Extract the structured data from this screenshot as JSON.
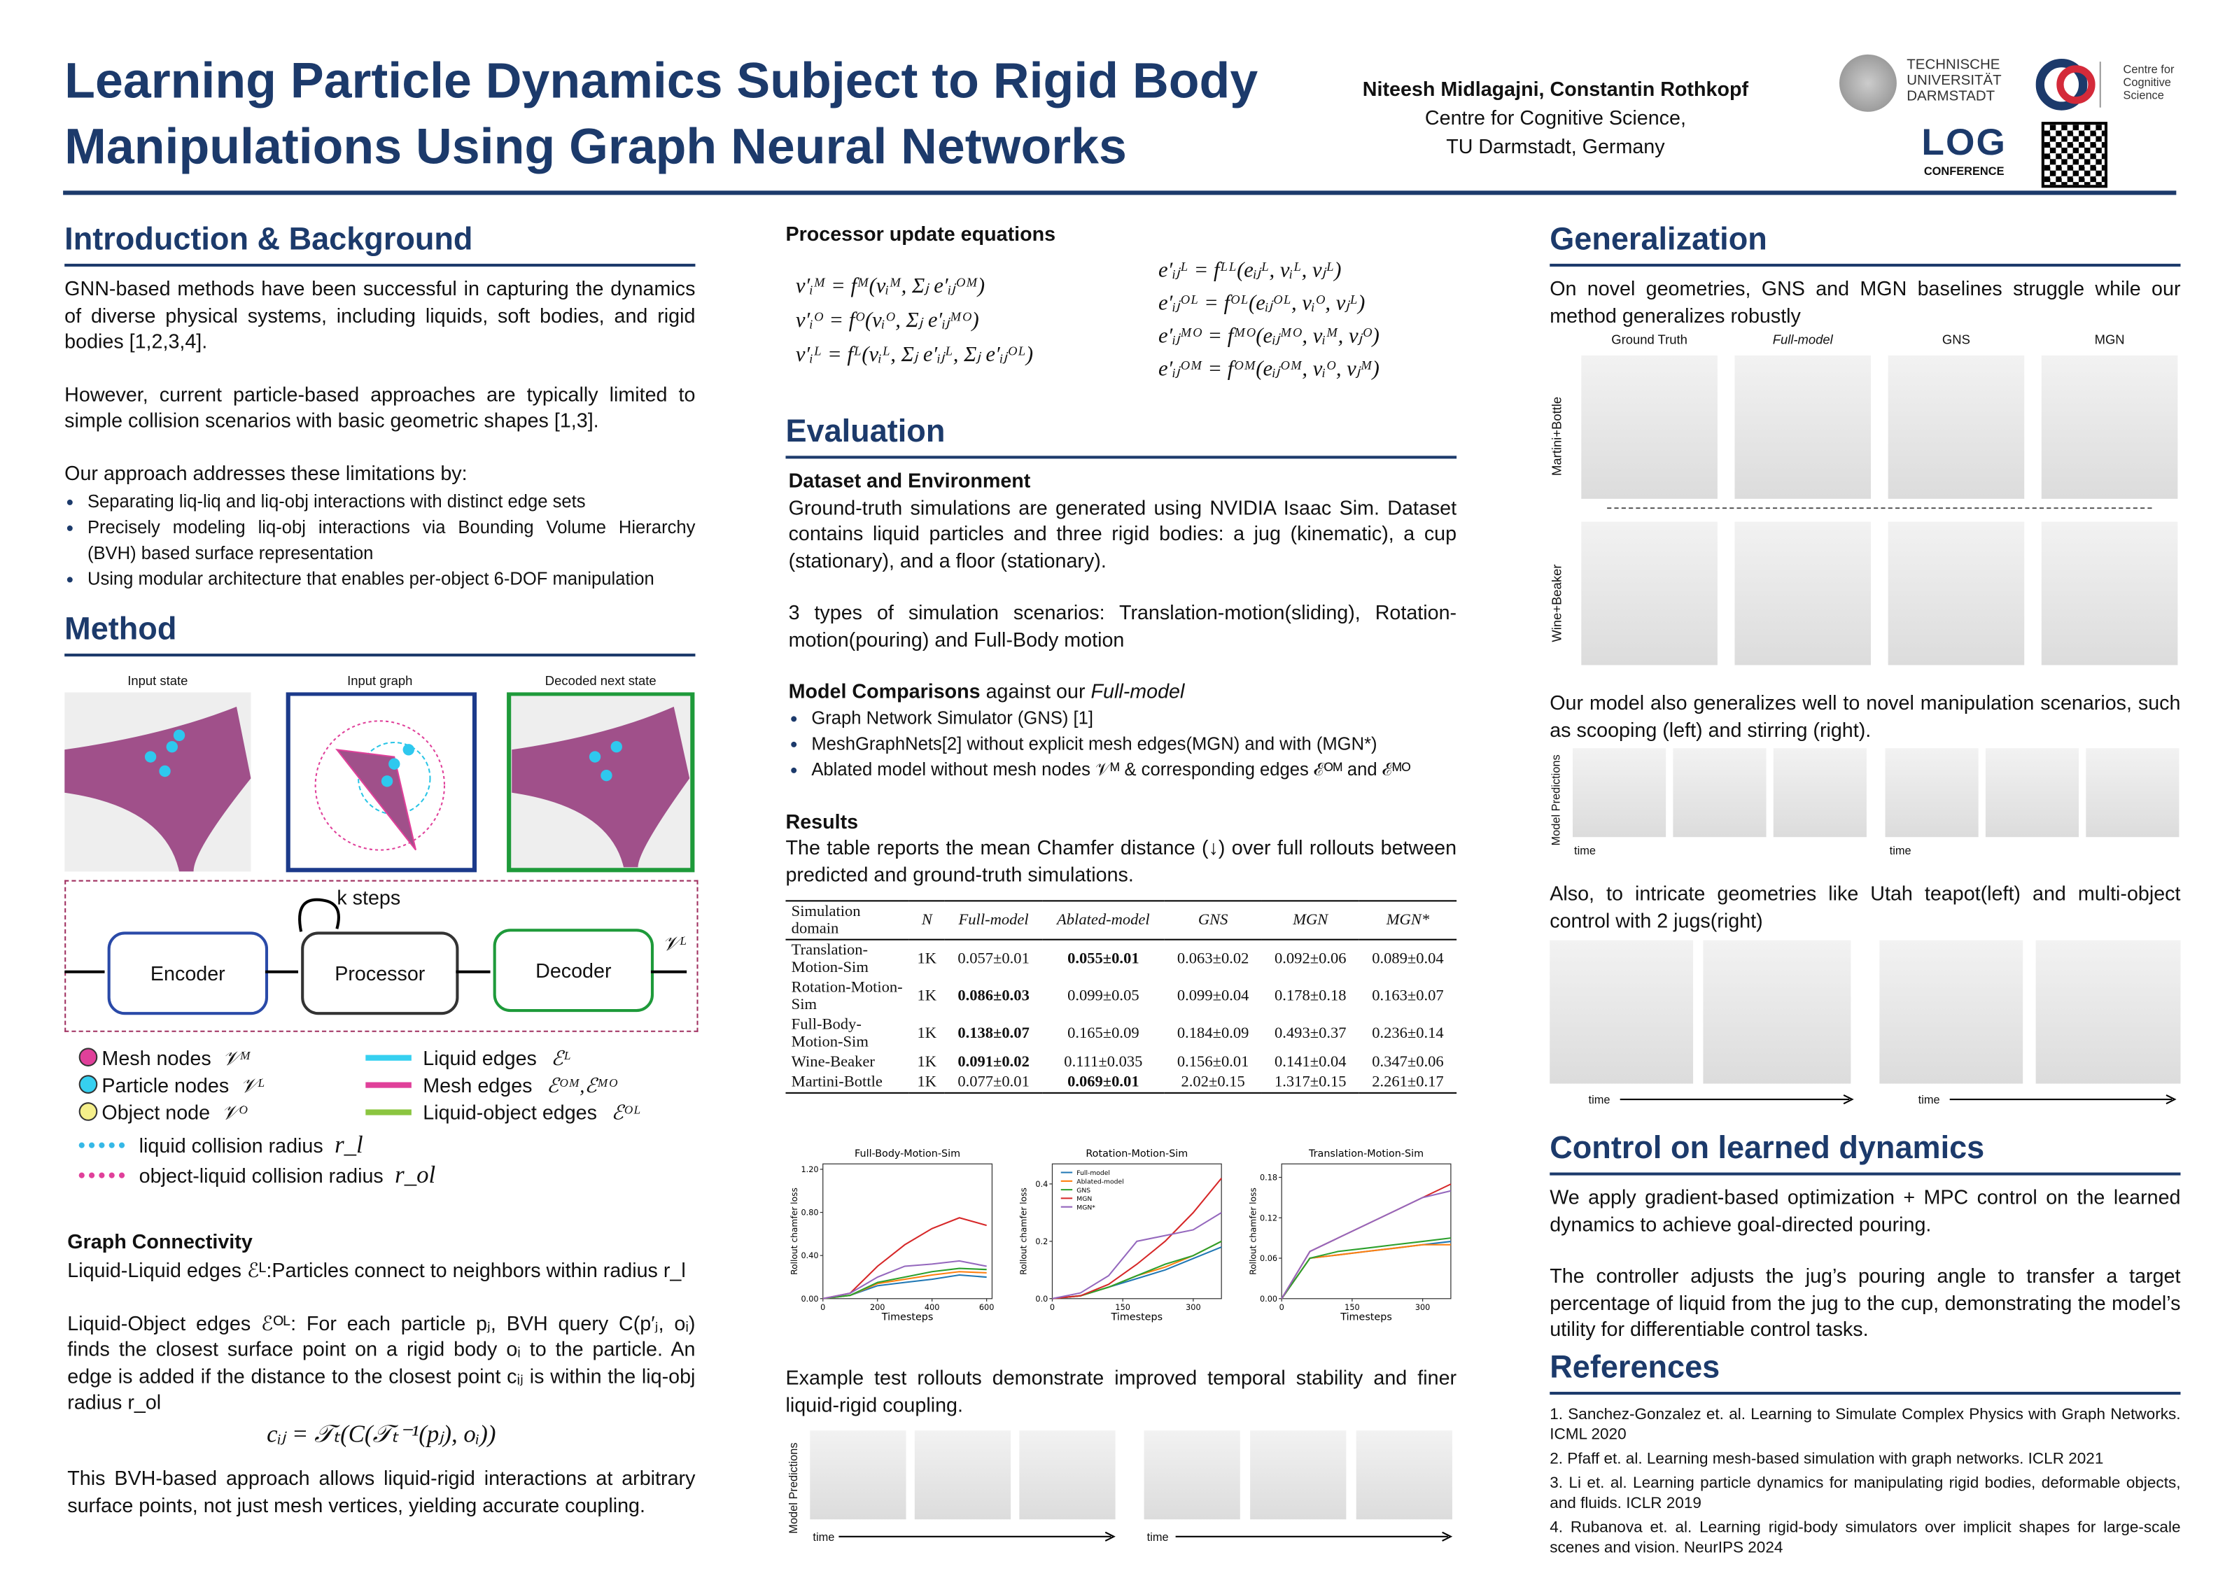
{
  "header": {
    "title_lines": [
      "Learning Particle Dynamics Subject to Rigid Body",
      "Manipulations Using Graph Neural Networks"
    ],
    "authors": "Niteesh Midlagajni, Constantin Rothkopf",
    "affiliation": [
      "Centre for Cognitive Science,",
      "TU Darmstadt, Germany"
    ],
    "tu_logo": [
      "TECHNISCHE",
      "UNIVERSITÄT",
      "DARMSTADT"
    ],
    "ccs_logo": [
      "Centre for",
      "Cognitive",
      "Science"
    ],
    "log_logo": "LOG",
    "log_sub": "CONFERENCE"
  },
  "intro": {
    "heading": "Introduction & Background",
    "paragraphs": [
      "GNN-based methods have been successful in capturing the dynamics of diverse physical systems, including liquids, soft bodies, and rigid bodies [1,2,3,4].",
      "However, current particle-based approaches are typically limited to simple collision scenarios with basic geometric shapes [1,3].",
      "Our approach addresses these limitations by:"
    ],
    "bullets": [
      "Separating liq-liq and liq-obj interactions with distinct edge sets",
      "Precisely modeling liq-obj interactions via Bounding Volume Hierarchy (BVH) based surface representation",
      "Using modular architecture that enables per-object 6-DOF manipulation"
    ]
  },
  "method": {
    "heading": "Method",
    "panels": [
      "Input state",
      "Input graph",
      "Decoded next state"
    ],
    "k_steps": "k steps",
    "blocks": [
      "Encoder",
      "Processor",
      "Decoder"
    ],
    "output": "𝒱ᴸ",
    "legend_left": [
      {
        "label": "Mesh nodes",
        "symbol": "𝒱ᴹ"
      },
      {
        "label": "Particle nodes",
        "symbol": "𝒱ᴸ"
      },
      {
        "label": "Object node",
        "symbol": "𝒱ᴼ"
      }
    ],
    "legend_right": [
      {
        "label": "Liquid edges",
        "symbol": "ℰᴸ"
      },
      {
        "label": "Mesh edges",
        "symbol": "ℰᴼᴹ,ℰᴹᴼ"
      },
      {
        "label": "Liquid-object edges",
        "symbol": "ℰᴼᴸ"
      }
    ],
    "radii": [
      {
        "label": "liquid collision radius",
        "symbol": "r_l"
      },
      {
        "label": "object-liquid collision radius",
        "symbol": "r_ol"
      }
    ],
    "connectivity_heading": "Graph Connectivity",
    "connectivity": [
      "Liquid-Liquid edges ℰᴸ:Particles connect to neighbors within radius r_l",
      "Liquid-Object edges ℰᴼᴸ: For each particle pⱼ, BVH query C(p′ⱼ, oᵢ) finds the closest surface point on a rigid body oᵢ to the particle. An edge is added if the distance to the closest point cᵢⱼ is within the liq-obj radius r_ol"
    ],
    "equation": "cᵢⱼ = 𝒯ₜ(C(𝒯ₜ⁻¹(pⱼ), oᵢ))",
    "closing": "This BVH-based approach allows liquid-rigid interactions at arbitrary surface points, not just mesh vertices, yielding accurate coupling."
  },
  "processor": {
    "heading": "Processor update equations",
    "left": [
      "v′ᵢᴹ = fᴹ(vᵢᴹ, Σⱼ e′ᵢⱼᴼᴹ)",
      "v′ᵢᴼ = fᴼ(vᵢᴼ, Σⱼ e′ᵢⱼᴹᴼ)",
      "v′ᵢᴸ = fᴸ(vᵢᴸ, Σⱼ e′ᵢⱼᴸ, Σⱼ e′ᵢⱼᴼᴸ)"
    ],
    "right": [
      "e′ᵢⱼᴸ = fᴸᴸ(eᵢⱼᴸ, vᵢᴸ, vⱼᴸ)",
      "e′ᵢⱼᴼᴸ = fᴼᴸ(eᵢⱼᴼᴸ, vᵢᴼ, vⱼᴸ)",
      "e′ᵢⱼᴹᴼ = fᴹᴼ(eᵢⱼᴹᴼ, vᵢᴹ, vⱼᴼ)",
      "e′ᵢⱼᴼᴹ = fᴼᴹ(eᵢⱼᴼᴹ, vᵢᴼ, vⱼᴹ)"
    ]
  },
  "evaluation": {
    "heading": "Evaluation",
    "dataset_heading": "Dataset and Environment",
    "dataset": [
      "Ground-truth simulations are generated using NVIDIA Isaac Sim. Dataset contains liquid particles and three rigid bodies: a jug (kinematic), a cup (stationary), and a floor (stationary).",
      "3 types of simulation scenarios: Translation-motion(sliding), Rotation-motion(pouring) and Full-Body motion"
    ],
    "comparisons_heading": "Model Comparisons",
    "comparisons_rest": "against our",
    "comparisons_model": "Full-model",
    "comparisons": [
      "Graph Network Simulator (GNS) [1]",
      "MeshGraphNets[2] without explicit mesh edges(MGN) and with (MGN*)",
      "Ablated model without mesh nodes 𝒱ᴹ & corresponding edges ℰᴼᴹ and ℰᴹᴼ"
    ],
    "results_heading": "Results",
    "results": "The table reports the mean Chamfer distance (↓) over full rollouts between predicted and ground-truth simulations.",
    "table": {
      "header": [
        "Simulation domain",
        "N",
        "Full-model",
        "Ablated-model",
        "GNS",
        "MGN",
        "MGN*"
      ],
      "rows": [
        [
          "Translation-Motion-Sim",
          "1K",
          "0.057±0.01",
          "0.055±0.01",
          "0.063±0.02",
          "0.092±0.06",
          "0.089±0.04"
        ],
        [
          "Rotation-Motion-Sim",
          "1K",
          "0.086±0.03",
          "0.099±0.05",
          "0.099±0.04",
          "0.178±0.18",
          "0.163±0.07"
        ],
        [
          "Full-Body-Motion-Sim",
          "1K",
          "0.138±0.07",
          "0.165±0.09",
          "0.184±0.09",
          "0.493±0.37",
          "0.236±0.14"
        ],
        [
          "Wine-Beaker",
          "1K",
          "0.091±0.02",
          "0.111±0.035",
          "0.156±0.01",
          "0.141±0.04",
          "0.347±0.06"
        ],
        [
          "Martini-Bottle",
          "1K",
          "0.077±0.01",
          "0.069±0.01",
          "2.02±0.15",
          "1.317±0.15",
          "2.261±0.17"
        ]
      ],
      "bold_cells": [
        [
          0,
          3
        ],
        [
          1,
          2
        ],
        [
          2,
          2
        ],
        [
          3,
          2
        ],
        [
          4,
          3
        ]
      ]
    },
    "rollouts": "Example test rollouts demonstrate improved temporal stability and finer liquid-rigid coupling.",
    "model_predictions": "Model Predictions",
    "time": "time"
  },
  "plots": [
    {
      "type": "line",
      "title": "Full-Body-Motion-Sim",
      "xlabel": "Timesteps",
      "ylabel": "Rollout chamfer loss",
      "x": [
        0,
        100,
        200,
        300,
        400,
        500,
        600
      ],
      "xlim": [
        0,
        620
      ],
      "xticks": [
        0,
        200,
        400,
        600
      ],
      "ylim": [
        0,
        1.25
      ],
      "yticks": [
        {
          "value": 0,
          "label": "0.00"
        },
        {
          "value": 0.4,
          "label": "0.40"
        },
        {
          "value": 0.8,
          "label": "0.80"
        },
        {
          "value": 1.2,
          "label": "1.20"
        }
      ],
      "legend": false,
      "series": [
        {
          "name": "Full-model",
          "color": "#1f77b4",
          "values": [
            0,
            0.03,
            0.12,
            0.15,
            0.18,
            0.22,
            0.2
          ]
        },
        {
          "name": "Ablated-model",
          "color": "#ff7f0e",
          "values": [
            0,
            0.03,
            0.14,
            0.18,
            0.22,
            0.25,
            0.24
          ]
        },
        {
          "name": "GNS",
          "color": "#2ca02c",
          "values": [
            0,
            0.03,
            0.15,
            0.2,
            0.25,
            0.28,
            0.27
          ]
        },
        {
          "name": "MGN",
          "color": "#d62728",
          "values": [
            0,
            0.05,
            0.3,
            0.5,
            0.65,
            0.75,
            0.68
          ]
        },
        {
          "name": "MGN*",
          "color": "#9467bd",
          "values": [
            0,
            0.05,
            0.2,
            0.3,
            0.32,
            0.35,
            0.3
          ]
        }
      ]
    },
    {
      "type": "line",
      "title": "Rotation-Motion-Sim",
      "xlabel": "Timesteps",
      "ylabel": "Rollout chamfer loss",
      "x": [
        0,
        60,
        120,
        180,
        240,
        300,
        360
      ],
      "xlim": [
        0,
        360
      ],
      "xticks": [
        0,
        150,
        300
      ],
      "ylim": [
        0,
        0.47
      ],
      "yticks": [
        {
          "value": 0,
          "label": "0.0"
        },
        0.2,
        0.4
      ],
      "legend": true,
      "series": [
        {
          "name": "Full-model",
          "color": "#1f77b4",
          "values": [
            0,
            0.01,
            0.04,
            0.07,
            0.1,
            0.14,
            0.18
          ]
        },
        {
          "name": "Ablated-model",
          "color": "#ff7f0e",
          "values": [
            0,
            0.01,
            0.04,
            0.08,
            0.11,
            0.15,
            0.2
          ]
        },
        {
          "name": "GNS",
          "color": "#2ca02c",
          "values": [
            0,
            0.01,
            0.04,
            0.08,
            0.12,
            0.15,
            0.2
          ]
        },
        {
          "name": "MGN",
          "color": "#d62728",
          "values": [
            0,
            0.01,
            0.05,
            0.12,
            0.2,
            0.3,
            0.42
          ]
        },
        {
          "name": "MGN*",
          "color": "#9467bd",
          "values": [
            0,
            0.02,
            0.08,
            0.2,
            0.22,
            0.24,
            0.3
          ]
        }
      ]
    },
    {
      "type": "line",
      "title": "Translation-Motion-Sim",
      "xlabel": "Timesteps",
      "ylabel": "Rollout chamfer loss",
      "x": [
        0,
        60,
        120,
        180,
        240,
        300,
        360
      ],
      "xlim": [
        0,
        360
      ],
      "xticks": [
        0,
        150,
        300
      ],
      "ylim": [
        0,
        0.2
      ],
      "yticks": [
        {
          "value": 0,
          "label": "0.00"
        },
        0.06,
        0.12,
        0.18
      ],
      "legend": false,
      "series": [
        {
          "name": "Full-model",
          "color": "#1f77b4",
          "values": [
            0,
            0.06,
            0.065,
            0.07,
            0.075,
            0.08,
            0.085
          ]
        },
        {
          "name": "Ablated-model",
          "color": "#ff7f0e",
          "values": [
            0,
            0.06,
            0.065,
            0.07,
            0.075,
            0.08,
            0.08
          ]
        },
        {
          "name": "GNS",
          "color": "#2ca02c",
          "values": [
            0,
            0.06,
            0.07,
            0.075,
            0.08,
            0.085,
            0.09
          ]
        },
        {
          "name": "MGN",
          "color": "#d62728",
          "values": [
            0,
            0.07,
            0.09,
            0.11,
            0.13,
            0.15,
            0.17
          ]
        },
        {
          "name": "MGN*",
          "color": "#9467bd",
          "values": [
            0,
            0.07,
            0.09,
            0.11,
            0.13,
            0.15,
            0.16
          ]
        }
      ]
    }
  ],
  "generalization": {
    "heading": "Generalization",
    "text": "On novel geometries, GNS and MGN baselines struggle while our method generalizes robustly",
    "columns": [
      "Ground Truth",
      "Full-model",
      "GNS",
      "MGN"
    ],
    "rows": [
      "Martini+Bottle",
      "Wine+Beaker"
    ],
    "text2": "Our model also generalizes well to novel manipulation scenarios, such as scooping (left) and stirring (right).",
    "model_predictions": "Model Predictions",
    "time": "time",
    "text3": "Also, to intricate geometries like Utah teapot(left) and multi-object control with 2 jugs(right)"
  },
  "control": {
    "heading": "Control on learned dynamics",
    "paragraphs": [
      "We apply gradient-based optimization + MPC control on the learned dynamics to achieve goal-directed pouring.",
      "The controller adjusts the jug’s pouring angle to transfer a target percentage of liquid from the jug to the cup, demonstrating the model’s utility for differentiable control tasks."
    ]
  },
  "references": {
    "heading": "References",
    "items": [
      "1. Sanchez-Gonzalez et. al. Learning to Simulate Complex Physics with Graph Networks. ICML 2020",
      "2. Pfaff et. al. Learning mesh-based simulation with graph networks. ICLR 2021",
      "3. Li et. al. Learning particle dynamics for manipulating rigid bodies, deformable objects, and fluids. ICLR 2019",
      "4. Rubanova et. al. Learning rigid-body simulators over implicit shapes for large-scale scenes and vision. NeurIPS 2024"
    ]
  }
}
